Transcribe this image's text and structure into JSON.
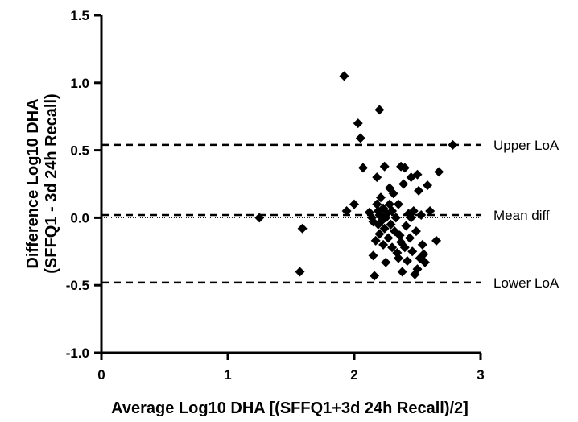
{
  "chart_data": {
    "type": "scatter",
    "title": "",
    "xlabel": "Average Log10 DHA [(SFFQ1+3d 24h Recall)/2]",
    "ylabel_line1": "Difference Log10 DHA",
    "ylabel_line2": "(SFFQ1 - 3d 24h Recall)",
    "xlim": [
      0,
      3
    ],
    "ylim": [
      -1.0,
      1.5
    ],
    "x_ticks": [
      0,
      1,
      2,
      3
    ],
    "x_tick_labels": [
      "0",
      "1",
      "2",
      "3"
    ],
    "y_ticks": [
      -1.0,
      -0.5,
      0.0,
      0.5,
      1.0,
      1.5
    ],
    "y_tick_labels": [
      "-1.0",
      "-0.5",
      "0.0",
      "0.5",
      "1.0",
      "1.5"
    ],
    "grid": false,
    "zero_line": 0.0,
    "reference_lines": [
      {
        "label": "Upper LoA",
        "y": 0.54
      },
      {
        "label": "Mean diff",
        "y": 0.02
      },
      {
        "label": "Lower LoA",
        "y": -0.48
      }
    ],
    "marker": "diamond",
    "marker_color": "#000000",
    "points": [
      {
        "x": 1.25,
        "y": 0.0
      },
      {
        "x": 1.57,
        "y": -0.4
      },
      {
        "x": 1.59,
        "y": -0.08
      },
      {
        "x": 1.92,
        "y": 1.05
      },
      {
        "x": 1.94,
        "y": 0.05
      },
      {
        "x": 2.0,
        "y": 0.1
      },
      {
        "x": 2.03,
        "y": 0.7
      },
      {
        "x": 2.05,
        "y": 0.59
      },
      {
        "x": 2.07,
        "y": 0.37
      },
      {
        "x": 2.12,
        "y": 0.04
      },
      {
        "x": 2.14,
        "y": 0.0
      },
      {
        "x": 2.15,
        "y": -0.03
      },
      {
        "x": 2.15,
        "y": -0.28
      },
      {
        "x": 2.16,
        "y": -0.43
      },
      {
        "x": 2.17,
        "y": -0.17
      },
      {
        "x": 2.18,
        "y": 0.1
      },
      {
        "x": 2.18,
        "y": 0.3
      },
      {
        "x": 2.19,
        "y": 0.05
      },
      {
        "x": 2.19,
        "y": -0.05
      },
      {
        "x": 2.2,
        "y": 0.02
      },
      {
        "x": 2.2,
        "y": -0.12
      },
      {
        "x": 2.2,
        "y": 0.8
      },
      {
        "x": 2.21,
        "y": 0.15
      },
      {
        "x": 2.22,
        "y": -0.02
      },
      {
        "x": 2.23,
        "y": -0.2
      },
      {
        "x": 2.23,
        "y": 0.07
      },
      {
        "x": 2.24,
        "y": -0.08
      },
      {
        "x": 2.24,
        "y": 0.38
      },
      {
        "x": 2.25,
        "y": 0.0
      },
      {
        "x": 2.25,
        "y": -0.33
      },
      {
        "x": 2.26,
        "y": 0.03
      },
      {
        "x": 2.27,
        "y": -0.15
      },
      {
        "x": 2.28,
        "y": 0.1
      },
      {
        "x": 2.28,
        "y": 0.22
      },
      {
        "x": 2.29,
        "y": -0.05
      },
      {
        "x": 2.3,
        "y": 0.05
      },
      {
        "x": 2.3,
        "y": -0.22
      },
      {
        "x": 2.31,
        "y": 0.18
      },
      {
        "x": 2.32,
        "y": -0.1
      },
      {
        "x": 2.33,
        "y": 0.0
      },
      {
        "x": 2.34,
        "y": -0.26
      },
      {
        "x": 2.35,
        "y": -0.3
      },
      {
        "x": 2.35,
        "y": 0.1
      },
      {
        "x": 2.36,
        "y": -0.13
      },
      {
        "x": 2.37,
        "y": -0.18
      },
      {
        "x": 2.37,
        "y": 0.38
      },
      {
        "x": 2.38,
        "y": -0.4
      },
      {
        "x": 2.39,
        "y": 0.25
      },
      {
        "x": 2.4,
        "y": 0.37
      },
      {
        "x": 2.4,
        "y": -0.22
      },
      {
        "x": 2.41,
        "y": -0.06
      },
      {
        "x": 2.42,
        "y": -0.32
      },
      {
        "x": 2.43,
        "y": 0.03
      },
      {
        "x": 2.44,
        "y": -0.15
      },
      {
        "x": 2.45,
        "y": 0.0
      },
      {
        "x": 2.45,
        "y": 0.3
      },
      {
        "x": 2.46,
        "y": -0.25
      },
      {
        "x": 2.47,
        "y": 0.05
      },
      {
        "x": 2.48,
        "y": -0.42
      },
      {
        "x": 2.49,
        "y": -0.1
      },
      {
        "x": 2.5,
        "y": 0.32
      },
      {
        "x": 2.5,
        "y": -0.38
      },
      {
        "x": 2.51,
        "y": 0.2
      },
      {
        "x": 2.52,
        "y": -0.3
      },
      {
        "x": 2.53,
        "y": 0.02
      },
      {
        "x": 2.54,
        "y": -0.2
      },
      {
        "x": 2.55,
        "y": -0.27
      },
      {
        "x": 2.56,
        "y": -0.33
      },
      {
        "x": 2.58,
        "y": 0.24
      },
      {
        "x": 2.6,
        "y": 0.05
      },
      {
        "x": 2.65,
        "y": -0.17
      },
      {
        "x": 2.67,
        "y": 0.34
      },
      {
        "x": 2.78,
        "y": 0.54
      }
    ]
  }
}
